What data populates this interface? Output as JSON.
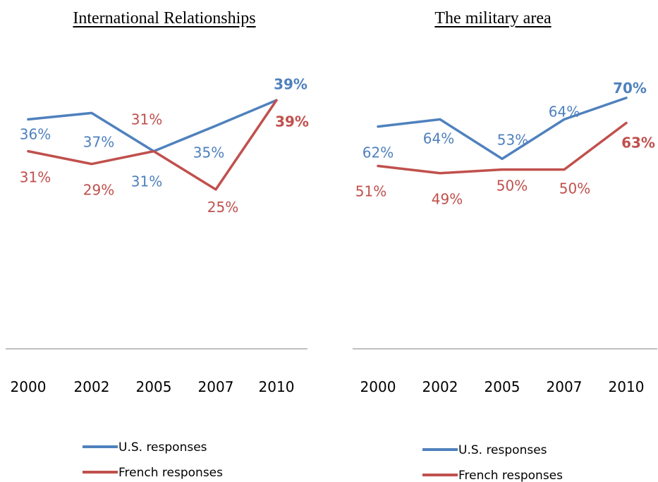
{
  "colors": {
    "us": "#4F81BD",
    "french": "#C0504D",
    "axis": "#808080"
  },
  "chart_data": [
    {
      "type": "line",
      "title": "International Relationships",
      "categories": [
        "2000",
        "2002",
        "2005",
        "2007",
        "2010"
      ],
      "ylim": [
        0,
        45
      ],
      "grid": false,
      "legend_position": "bottom",
      "series": [
        {
          "name": "U.S. responses",
          "color": "#4F81BD",
          "values": [
            36,
            37,
            31,
            35,
            39
          ],
          "labels": [
            "36%",
            "37%",
            "31%",
            "35%",
            "39%"
          ]
        },
        {
          "name": "French responses",
          "color": "#C0504D",
          "values": [
            31,
            29,
            31,
            25,
            39
          ],
          "labels": [
            "31%",
            "29%",
            "31%",
            "25%",
            "39%"
          ]
        }
      ]
    },
    {
      "type": "line",
      "title": "The military area",
      "categories": [
        "2000",
        "2002",
        "2005",
        "2007",
        "2010"
      ],
      "ylim": [
        0,
        80
      ],
      "grid": false,
      "legend_position": "bottom",
      "series": [
        {
          "name": "U.S. responses",
          "color": "#4F81BD",
          "values": [
            62,
            64,
            53,
            64,
            70
          ],
          "labels": [
            "62%",
            "64%",
            "53%",
            "64%",
            "70%"
          ]
        },
        {
          "name": "French responses",
          "color": "#C0504D",
          "values": [
            51,
            49,
            50,
            50,
            63
          ],
          "labels": [
            "51%",
            "49%",
            "50%",
            "50%",
            "63%"
          ]
        }
      ]
    }
  ]
}
